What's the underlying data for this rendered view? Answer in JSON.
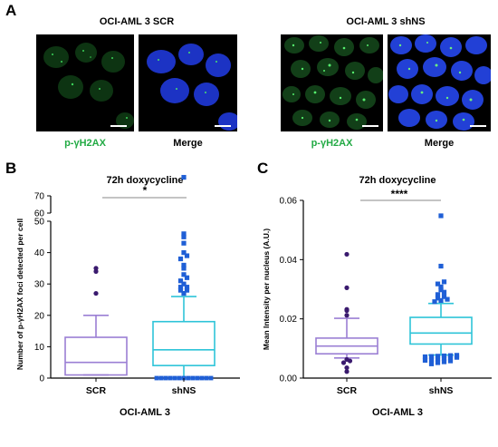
{
  "panels": {
    "a": {
      "letter": "A",
      "groups": [
        {
          "title": "OCI-AML 3 SCR",
          "label_left": "p-γH2AX",
          "label_right": "Merge"
        },
        {
          "title": "OCI-AML 3 shNS",
          "label_left": "p-γH2AX",
          "label_right": "Merge"
        }
      ]
    },
    "b": {
      "letter": "B"
    },
    "c": {
      "letter": "C"
    }
  },
  "colors": {
    "green_label": "#22aa44",
    "scr": "#9b7fd4",
    "shns": "#2ec4d8",
    "shns_points": "#1f5fd6",
    "scr_points": "#3a1a6e",
    "micro_bg": "#000000",
    "nucleus": "#1a2fb8"
  },
  "chart_data": [
    {
      "type": "box",
      "title": "72h doxycycline",
      "significance": "*",
      "xlabel": "OCI-AML 3",
      "ylabel": "Number of p-γH2AX foci detected per cell",
      "categories": [
        "SCR",
        "shNS"
      ],
      "axis_break": {
        "lower": [
          0,
          50
        ],
        "upper": [
          60,
          70
        ]
      },
      "yticks_lower": [
        "0",
        "10",
        "20",
        "30",
        "40",
        "50"
      ],
      "yticks_upper": [
        "60",
        "70"
      ],
      "boxes": [
        {
          "name": "SCR",
          "min": 1,
          "q1": 1,
          "median": 5,
          "q3": 13,
          "max": 20,
          "outliers": [
            27,
            34,
            35
          ],
          "zero_points": []
        },
        {
          "name": "shNS",
          "min": 0,
          "q1": 4,
          "median": 9,
          "q3": 18,
          "max": 26,
          "outliers": [
            27,
            28,
            28,
            29,
            29,
            30,
            31,
            32,
            33,
            35,
            36,
            38,
            39,
            40,
            43,
            45,
            46,
            64
          ],
          "zero_points": [
            0,
            0,
            0,
            0,
            0,
            0,
            0,
            0,
            0,
            0,
            0,
            0,
            0
          ]
        }
      ]
    },
    {
      "type": "box",
      "title": "72h doxycycline",
      "significance": "****",
      "xlabel": "OCI-AML 3",
      "ylabel": "Mean Intensity per nucleus (A.U.)",
      "categories": [
        "SCR",
        "shNS"
      ],
      "ylim": [
        0,
        0.06
      ],
      "yticks": [
        "0.00",
        "0.02",
        "0.04",
        "0.06"
      ],
      "boxes": [
        {
          "name": "SCR",
          "min": 0.0068,
          "q1": 0.0082,
          "median": 0.0108,
          "q3": 0.0135,
          "max": 0.0202,
          "outliers": [
            0.0022,
            0.0035,
            0.0052,
            0.0058,
            0.0063,
            0.0212,
            0.0228,
            0.0232,
            0.0305,
            0.0418
          ]
        },
        {
          "name": "shNS",
          "min": 0.0078,
          "q1": 0.0115,
          "median": 0.0152,
          "q3": 0.0205,
          "max": 0.0252,
          "outliers": [
            0.0048,
            0.0052,
            0.0055,
            0.0058,
            0.006,
            0.0062,
            0.0064,
            0.0066,
            0.0068,
            0.007,
            0.0072,
            0.0073,
            0.0074,
            0.0075,
            0.0076,
            0.0077,
            0.0258,
            0.0262,
            0.0266,
            0.027,
            0.0275,
            0.0282,
            0.029,
            0.0298,
            0.0308,
            0.0318,
            0.0325,
            0.0378,
            0.0548
          ]
        }
      ]
    }
  ]
}
